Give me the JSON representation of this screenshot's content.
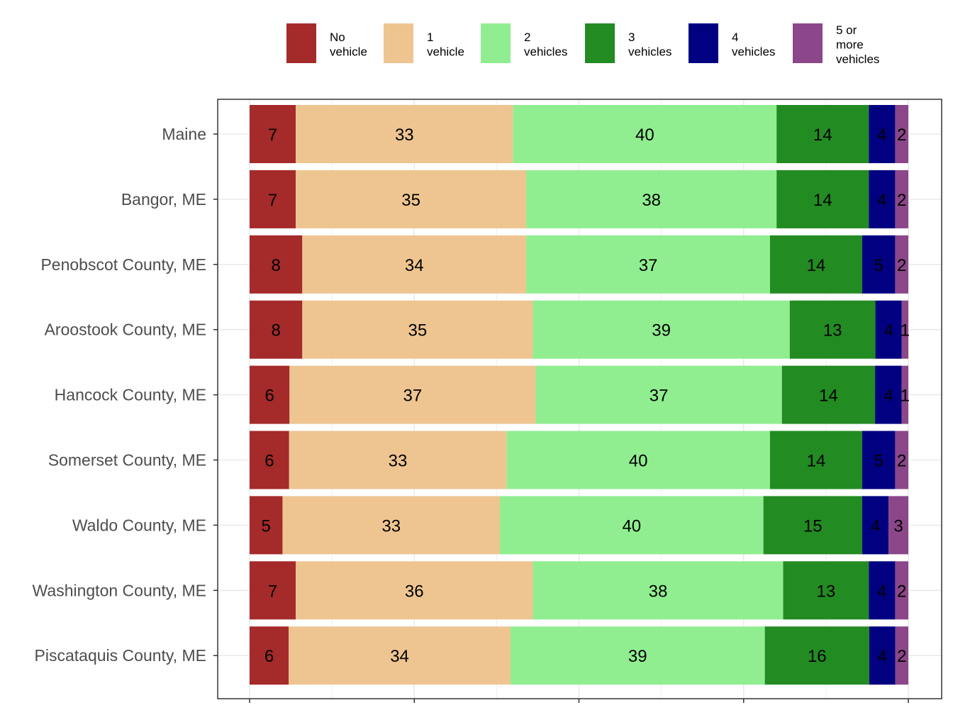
{
  "chart_data": {
    "type": "bar",
    "orientation": "horizontal",
    "stacked": true,
    "normalized_percent": true,
    "title": "",
    "xlabel": "",
    "ylabel": "",
    "xlim": [
      0,
      100
    ],
    "grid": true,
    "legend_position": "top",
    "categories": [
      "Maine",
      "Bangor, ME",
      "Penobscot County, ME",
      "Aroostook County, ME",
      "Hancock County, ME",
      "Somerset County, ME",
      "Waldo County, ME",
      "Washington County, ME",
      "Piscataquis County, ME"
    ],
    "series": [
      {
        "name": "No vehicle",
        "legend_lines": [
          "No",
          "vehicle"
        ],
        "color": "#A52A2A",
        "values": [
          7,
          7,
          8,
          8,
          6,
          6,
          5,
          7,
          6
        ]
      },
      {
        "name": "1 vehicle",
        "legend_lines": [
          "1",
          "vehicle"
        ],
        "color": "#EEC591",
        "values": [
          33,
          35,
          34,
          35,
          37,
          33,
          33,
          36,
          34
        ]
      },
      {
        "name": "2 vehicles",
        "legend_lines": [
          "2",
          "vehicles"
        ],
        "color": "#90EE90",
        "values": [
          40,
          38,
          37,
          39,
          37,
          40,
          40,
          38,
          39
        ]
      },
      {
        "name": "3 vehicles",
        "legend_lines": [
          "3",
          "vehicles"
        ],
        "color": "#228B22",
        "values": [
          14,
          14,
          14,
          13,
          14,
          14,
          15,
          13,
          16
        ]
      },
      {
        "name": "4 vehicles",
        "legend_lines": [
          "4",
          "vehicles"
        ],
        "color": "#000080",
        "values": [
          4,
          4,
          5,
          4,
          4,
          5,
          4,
          4,
          4
        ]
      },
      {
        "name": "5 or more vehicles",
        "legend_lines": [
          "5 or",
          "more",
          "vehicles"
        ],
        "color": "#8B4789",
        "values": [
          2,
          2,
          2,
          1,
          1,
          2,
          3,
          2,
          2
        ]
      }
    ]
  }
}
